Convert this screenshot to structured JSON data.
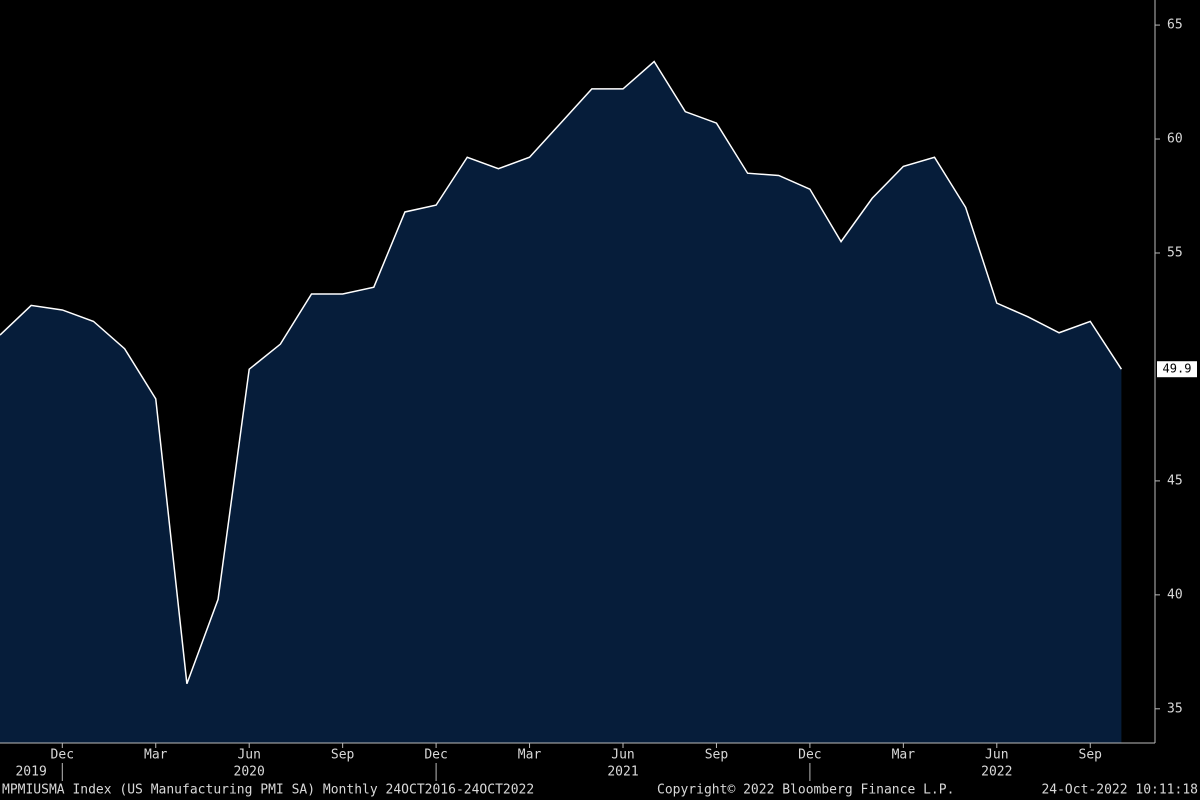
{
  "chart_data": {
    "type": "area",
    "x": [
      "2019-10",
      "2019-11",
      "2019-12",
      "2020-01",
      "2020-02",
      "2020-03",
      "2020-04",
      "2020-05",
      "2020-06",
      "2020-07",
      "2020-08",
      "2020-09",
      "2020-10",
      "2020-11",
      "2020-12",
      "2021-01",
      "2021-02",
      "2021-03",
      "2021-04",
      "2021-05",
      "2021-06",
      "2021-07",
      "2021-08",
      "2021-09",
      "2021-10",
      "2021-11",
      "2021-12",
      "2022-01",
      "2022-02",
      "2022-03",
      "2022-04",
      "2022-05",
      "2022-06",
      "2022-07",
      "2022-08",
      "2022-09",
      "2022-10"
    ],
    "series": [
      {
        "name": "MPMIUSMA Index (US Manufacturing PMI SA)",
        "color": "#ffffff",
        "fill": "#061d3a",
        "values": [
          51.4,
          52.7,
          52.5,
          52.0,
          50.8,
          48.6,
          36.1,
          39.8,
          49.9,
          51.0,
          53.2,
          53.2,
          53.5,
          56.8,
          57.1,
          59.2,
          58.7,
          59.2,
          60.7,
          62.2,
          62.2,
          63.4,
          61.2,
          60.7,
          58.5,
          58.4,
          57.8,
          55.5,
          57.4,
          58.8,
          59.2,
          57.0,
          52.8,
          52.2,
          51.5,
          52.0,
          49.9
        ]
      }
    ],
    "xticks": [
      {
        "value": "2019-12",
        "label": "Dec"
      },
      {
        "value": "2020-03",
        "label": "Mar"
      },
      {
        "value": "2020-06",
        "label": "Jun"
      },
      {
        "value": "2020-09",
        "label": "Sep"
      },
      {
        "value": "2020-12",
        "label": "Dec"
      },
      {
        "value": "2021-03",
        "label": "Mar"
      },
      {
        "value": "2021-06",
        "label": "Jun"
      },
      {
        "value": "2021-09",
        "label": "Sep"
      },
      {
        "value": "2021-12",
        "label": "Dec"
      },
      {
        "value": "2022-03",
        "label": "Mar"
      },
      {
        "value": "2022-06",
        "label": "Jun"
      },
      {
        "value": "2022-09",
        "label": "Sep"
      }
    ],
    "year_labels": [
      {
        "value": "2019-11",
        "label": "2019"
      },
      {
        "value": "2020-06",
        "label": "2020"
      },
      {
        "value": "2021-06",
        "label": "2021"
      },
      {
        "value": "2022-06",
        "label": "2022"
      }
    ],
    "ylim": [
      33.5,
      66.1
    ],
    "yticks": [
      35,
      40,
      45,
      55,
      60,
      65
    ],
    "footer": {
      "left": "MPMIUSMA Index (US Manufacturing PMI SA)  Monthly 24OCT2016-24OCT2022",
      "middle": "Copyright© 2022 Bloomberg Finance L.P.",
      "right": "24-Oct-2022 10:11:18"
    }
  }
}
